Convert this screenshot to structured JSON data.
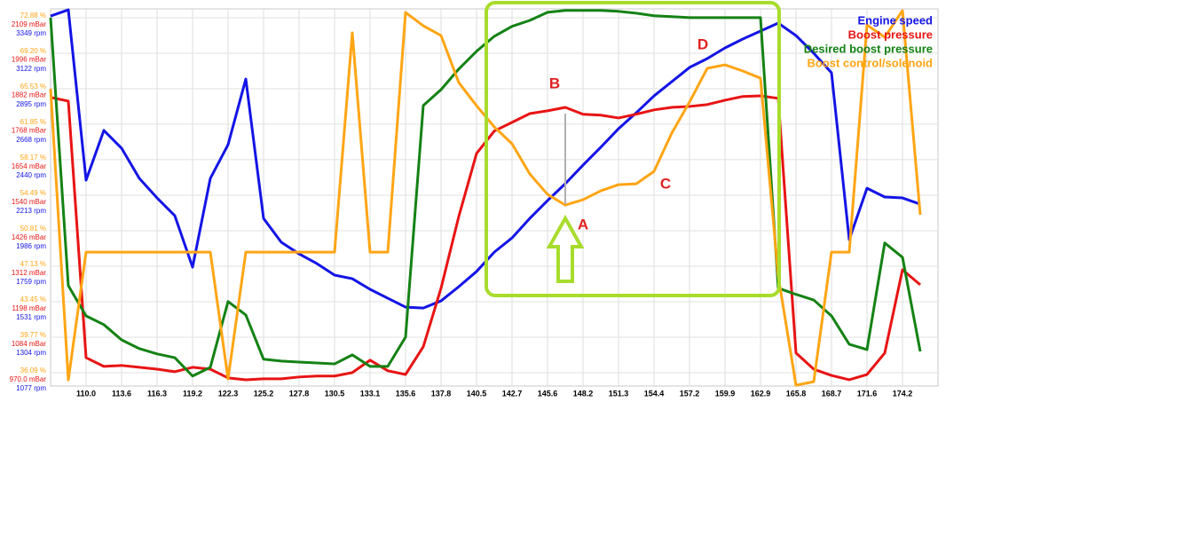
{
  "chart_data": {
    "type": "line",
    "categories": [
      null,
      null,
      "110.0",
      null,
      "113.6",
      null,
      "116.3",
      null,
      "119.2",
      null,
      "122.3",
      null,
      "125.2",
      null,
      "127.8",
      null,
      "130.5",
      null,
      "133.1",
      null,
      "135.6",
      null,
      "137.8",
      null,
      "140.5",
      null,
      "142.7",
      null,
      "145.6",
      null,
      "148.2",
      null,
      "151.3",
      null,
      "154.4",
      null,
      "157.2",
      null,
      "159.9",
      null,
      "162.9",
      null,
      "165.8",
      null,
      "168.7",
      null,
      "171.6",
      null,
      "174.2",
      null
    ],
    "series": [
      {
        "name": "Engine speed",
        "color": "#1414e6",
        "axis": "y",
        "values": [
          3360,
          3400,
          2310,
          2628,
          2514,
          2321,
          2196,
          2082,
          1753,
          2321,
          2537,
          2957,
          2065,
          1912,
          1838,
          1776,
          1702,
          1679,
          1611,
          1554,
          1497,
          1491,
          1537,
          1628,
          1725,
          1849,
          1940,
          2065,
          2179,
          2287,
          2406,
          2520,
          2639,
          2741,
          2849,
          2940,
          3031,
          3088,
          3156,
          3213,
          3264,
          3315,
          3235,
          3122,
          2997,
          1929,
          2258,
          2202,
          2196,
          2156
        ]
      },
      {
        "name": "Boost pressure",
        "color": "#e81414",
        "axis": "y2",
        "values": [
          1853,
          1841,
          1018,
          990,
          993,
          987,
          981,
          973,
          987,
          981,
          953,
          947,
          950,
          950,
          956,
          959,
          959,
          970,
          1010,
          976,
          964,
          1053,
          1241,
          1471,
          1673,
          1745,
          1773,
          1801,
          1810,
          1821,
          1799,
          1796,
          1787,
          1799,
          1813,
          1821,
          1824,
          1830,
          1844,
          1856,
          1858,
          1850,
          1033,
          981,
          961,
          947,
          964,
          1033,
          1300,
          1252
        ]
      },
      {
        "name": "Desired boost pressure",
        "color": "#148214",
        "axis": "y2",
        "values": [
          2109,
          1249,
          1152,
          1124,
          1075,
          1047,
          1030,
          1018,
          959,
          987,
          1198,
          1155,
          1013,
          1007,
          1004,
          1001,
          998,
          1027,
          990,
          990,
          1084,
          1827,
          1878,
          1944,
          2001,
          2049,
          2081,
          2100,
          2126,
          2132,
          2132,
          2132,
          2129,
          2123,
          2115,
          2112,
          2109,
          2109,
          2109,
          2109,
          2109,
          1241,
          1221,
          1203,
          1152,
          1061,
          1044,
          1386,
          1340,
          1038
        ]
      },
      {
        "name": "Boost control/solenoid",
        "color": "#ffa514",
        "axis": "y3",
        "values": [
          65.52,
          35.34,
          48.59,
          48.59,
          48.59,
          48.59,
          48.59,
          48.59,
          48.59,
          48.59,
          35.44,
          48.59,
          48.59,
          48.59,
          48.59,
          48.59,
          48.59,
          71.32,
          48.59,
          48.59,
          73.43,
          72.05,
          71.04,
          66.16,
          63.77,
          61.56,
          59.82,
          56.69,
          54.57,
          53.47,
          54.02,
          54.94,
          55.58,
          55.67,
          56.96,
          60.92,
          64.14,
          67.64,
          68.0,
          67.36,
          66.62,
          46.11,
          34.79,
          35.16,
          48.59,
          48.59,
          72.14,
          70.86,
          73.62,
          52.46
        ]
      }
    ],
    "ylim": [
      992,
      3406
    ],
    "yticks": [
      {
        "value": 3349,
        "label": "3349 rpm"
      },
      {
        "value": 3122,
        "label": "3122 rpm"
      },
      {
        "value": 2895,
        "label": "2895 rpm"
      },
      {
        "value": 2668,
        "label": "2668 rpm"
      },
      {
        "value": 2440,
        "label": "2440 rpm"
      },
      {
        "value": 2213,
        "label": "2213 rpm"
      },
      {
        "value": 1986,
        "label": "1986 rpm"
      },
      {
        "value": 1759,
        "label": "1759 rpm"
      },
      {
        "value": 1531,
        "label": "1531 rpm"
      },
      {
        "value": 1304,
        "label": "1304 rpm"
      },
      {
        "value": 1077,
        "label": "1077 rpm"
      }
    ],
    "y2lim": [
      927,
      2137
    ],
    "y2ticks": [
      {
        "value": 2109,
        "label": "2109 mBar"
      },
      {
        "value": 1996,
        "label": "1996 mBar"
      },
      {
        "value": 1882,
        "label": "1882 mBar"
      },
      {
        "value": 1768,
        "label": "1768 mBar"
      },
      {
        "value": 1654,
        "label": "1654 mBar"
      },
      {
        "value": 1540,
        "label": "1540 mBar"
      },
      {
        "value": 1426,
        "label": "1426 mBar"
      },
      {
        "value": 1312,
        "label": "1312 mBar"
      },
      {
        "value": 1198,
        "label": "1198 mBar"
      },
      {
        "value": 1084,
        "label": "1084 mBar"
      },
      {
        "value": 970,
        "label": "970.0 mBar"
      }
    ],
    "y3lim": [
      34.71,
      73.8
    ],
    "y3ticks": [
      {
        "value": 72.88,
        "label": "72.88 %"
      },
      {
        "value": 69.2,
        "label": "69.20 %"
      },
      {
        "value": 65.53,
        "label": "65.53 %"
      },
      {
        "value": 61.85,
        "label": "61.85 %"
      },
      {
        "value": 58.17,
        "label": "58.17 %"
      },
      {
        "value": 54.49,
        "label": "54.49 %"
      },
      {
        "value": 50.81,
        "label": "50.81 %"
      },
      {
        "value": 47.13,
        "label": "47.13 %"
      },
      {
        "value": 43.45,
        "label": "43.45 %"
      },
      {
        "value": 39.77,
        "label": "39.77 %"
      },
      {
        "value": 36.09,
        "label": "36.09 %"
      }
    ],
    "grid": true,
    "legend": "top-right",
    "annotations": [
      {
        "text": "A"
      },
      {
        "text": "B"
      },
      {
        "text": "C"
      },
      {
        "text": "D"
      }
    ]
  }
}
